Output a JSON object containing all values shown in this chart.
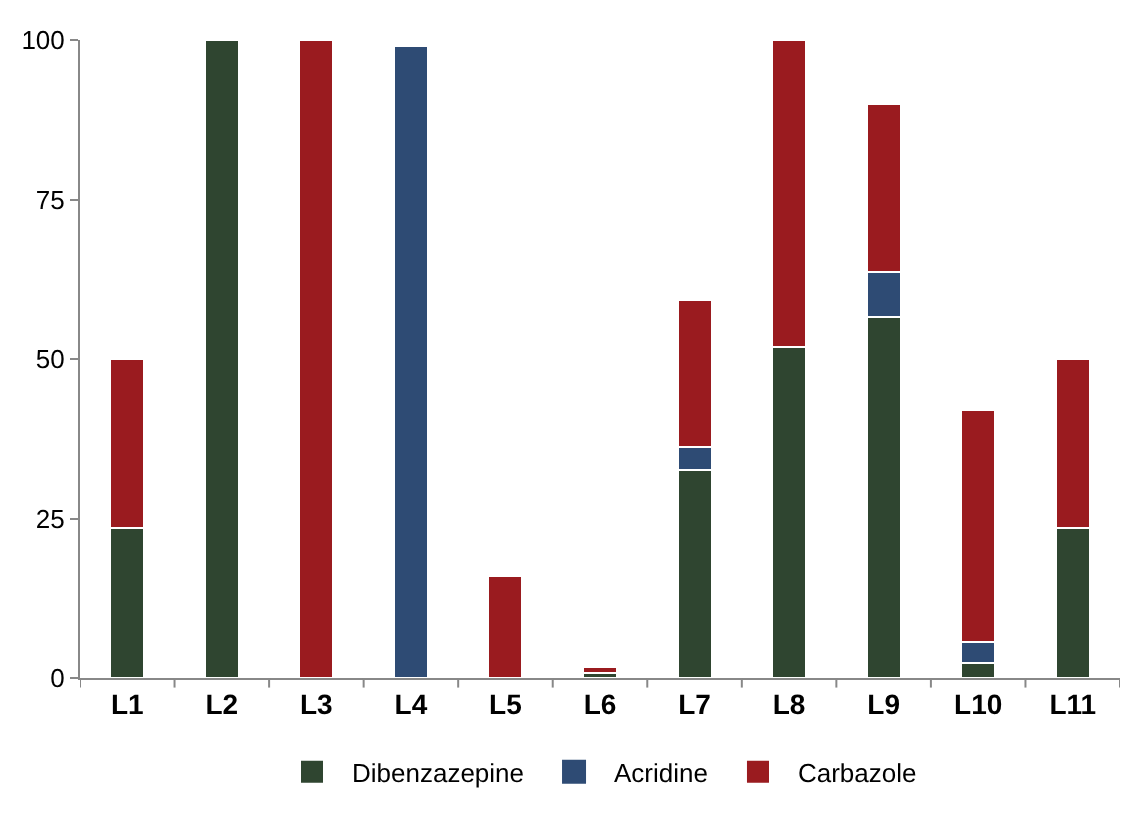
{
  "chart_data": {
    "type": "bar",
    "stacked": true,
    "categories": [
      "L1",
      "L2",
      "L3",
      "L4",
      "L5",
      "L6",
      "L7",
      "L8",
      "L9",
      "L10",
      "L11"
    ],
    "series": [
      {
        "name": "Dibenzazepine",
        "color": "#2f4530",
        "values": [
          23.5,
          100,
          0,
          0,
          0,
          0.8,
          32.6,
          51.9,
          56.6,
          2.4,
          23.5
        ]
      },
      {
        "name": "Acridine",
        "color": "#2e4b74",
        "values": [
          0,
          0,
          0,
          99,
          0,
          0,
          3.6,
          0,
          7.1,
          3.3,
          0
        ]
      },
      {
        "name": "Carbazole",
        "color": "#9a1b1f",
        "values": [
          26.5,
          0,
          100,
          0,
          16,
          1,
          23.1,
          48.1,
          26.2,
          36.3,
          26.5
        ]
      }
    ],
    "ylim": [
      0,
      100
    ],
    "yticks": [
      0,
      25,
      50,
      75,
      100
    ],
    "grid": false,
    "legend": "bottom"
  }
}
